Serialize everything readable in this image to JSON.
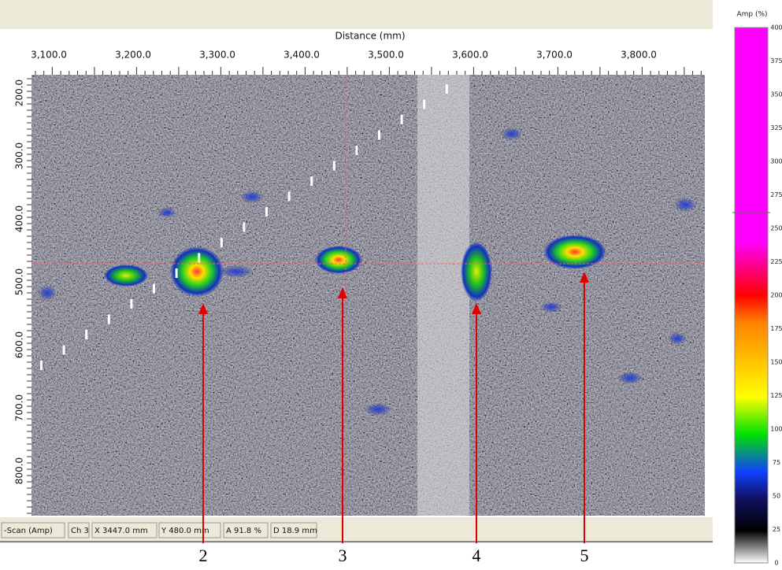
{
  "window": {
    "x_axis_title": "Distance (mm)",
    "x_ticks": [
      "3,100.0",
      "3,200.0",
      "3,300.0",
      "3,400.0",
      "3,500.0",
      "3,600.0",
      "3,700.0",
      "3,800.0"
    ],
    "y_ticks": [
      "200.0",
      "300.0",
      "400.0",
      "500.0",
      "600.0",
      "700.0",
      "800.0"
    ],
    "status_bar": [
      "-Scan (Amp)",
      "Ch 3",
      "X 3447.0 mm",
      "Y 480.0 mm",
      "A 91.8 %",
      "D 18.9 mm"
    ],
    "color_scale": {
      "title": "Amp (%)",
      "labels": [
        400,
        375,
        350,
        325,
        300,
        275,
        250,
        225,
        200,
        175,
        150,
        125,
        100,
        75,
        50,
        25,
        0
      ]
    },
    "markers": [
      "2",
      "3",
      "4",
      "5"
    ]
  }
}
